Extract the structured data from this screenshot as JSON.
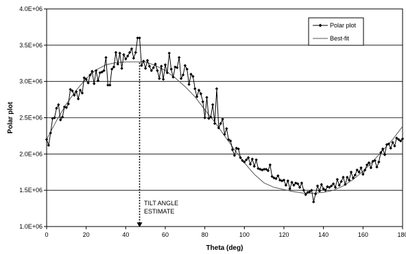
{
  "chart_data": {
    "type": "line",
    "title": "",
    "xlabel": "Theta (deg)",
    "ylabel": "Polar plot",
    "xlim": [
      0,
      180
    ],
    "ylim": [
      1000000,
      4000000
    ],
    "x_ticks": [
      0,
      20,
      40,
      60,
      80,
      100,
      120,
      140,
      160,
      180
    ],
    "x_tick_labels": [
      "0",
      "20",
      "40",
      "60",
      "80",
      "100",
      "120",
      "140",
      "160",
      "180"
    ],
    "y_ticks": [
      1000000,
      1500000,
      2000000,
      2500000,
      3000000,
      3500000,
      4000000
    ],
    "y_tick_labels": [
      "1.0E+06",
      "1.5E+06",
      "2.0E+06",
      "2.5E+06",
      "3.0E+06",
      "3.5E+06",
      "4.0E+06"
    ],
    "grid": "horizontal",
    "legend_position": "top-right",
    "colors": {
      "series": "#000000",
      "fit": "#555555",
      "grid": "#000000"
    },
    "series": [
      {
        "name": "Polar plot",
        "marker": "diamond",
        "x": [
          0,
          1,
          2,
          3,
          4,
          5,
          6,
          7,
          8,
          9,
          10,
          11,
          12,
          13,
          14,
          15,
          16,
          17,
          18,
          19,
          20,
          21,
          22,
          23,
          24,
          25,
          26,
          27,
          28,
          29,
          30,
          31,
          32,
          33,
          34,
          35,
          36,
          37,
          38,
          39,
          40,
          41,
          42,
          43,
          44,
          45,
          46,
          47,
          48,
          49,
          50,
          51,
          52,
          53,
          54,
          55,
          56,
          57,
          58,
          59,
          60,
          61,
          62,
          63,
          64,
          65,
          66,
          67,
          68,
          69,
          70,
          71,
          72,
          73,
          74,
          75,
          76,
          77,
          78,
          79,
          80,
          81,
          82,
          83,
          84,
          85,
          86,
          87,
          88,
          89,
          90,
          91,
          92,
          93,
          94,
          95,
          96,
          97,
          98,
          99,
          100,
          101,
          102,
          103,
          104,
          105,
          106,
          107,
          108,
          109,
          110,
          111,
          112,
          113,
          114,
          115,
          116,
          117,
          118,
          119,
          120,
          121,
          122,
          123,
          124,
          125,
          126,
          127,
          128,
          129,
          130,
          131,
          132,
          133,
          134,
          135,
          136,
          137,
          138,
          139,
          140,
          141,
          142,
          143,
          144,
          145,
          146,
          147,
          148,
          149,
          150,
          151,
          152,
          153,
          154,
          155,
          156,
          157,
          158,
          159,
          160,
          161,
          162,
          163,
          164,
          165,
          166,
          167,
          168,
          169,
          170,
          171,
          172,
          173,
          174,
          175,
          176,
          177,
          178,
          179,
          180
        ],
        "values": [
          2200000,
          2120000,
          2290000,
          2490000,
          2500000,
          2630000,
          2680000,
          2470000,
          2510000,
          2650000,
          2640000,
          2690000,
          2890000,
          2870000,
          2810000,
          2860000,
          2760000,
          2880000,
          2840000,
          3050000,
          3030000,
          2980000,
          3090000,
          3140000,
          2970000,
          3150000,
          3010000,
          3120000,
          3130000,
          3150000,
          3330000,
          2950000,
          2950000,
          3170000,
          3200000,
          3400000,
          3240000,
          3390000,
          3180000,
          3370000,
          3310000,
          3350000,
          3400000,
          3450000,
          3320000,
          3400000,
          3600000,
          3600000,
          3220000,
          3280000,
          3180000,
          3290000,
          3210000,
          3150000,
          3190000,
          3240000,
          3150000,
          3040000,
          3210000,
          3030000,
          3230000,
          3120000,
          3390000,
          3170000,
          3060000,
          3200000,
          3190000,
          3330000,
          3040000,
          3090000,
          3220000,
          3170000,
          2960000,
          3100000,
          3070000,
          2900000,
          2790000,
          2880000,
          2830000,
          2720000,
          2500000,
          2780000,
          2490000,
          2510000,
          2680000,
          2420000,
          2900000,
          2360000,
          2420000,
          2480000,
          2270000,
          2350000,
          2200000,
          2180000,
          2060000,
          1980000,
          2080000,
          2070000,
          1950000,
          1910000,
          1890000,
          1920000,
          1950000,
          1860000,
          1930000,
          1830000,
          1920000,
          1800000,
          1790000,
          1780000,
          1790000,
          1790000,
          1770000,
          1850000,
          1690000,
          1670000,
          1660000,
          1700000,
          1640000,
          1630000,
          1640000,
          1570000,
          1630000,
          1520000,
          1610000,
          1570000,
          1600000,
          1590000,
          1540000,
          1600000,
          1500000,
          1440000,
          1470000,
          1480000,
          1500000,
          1340000,
          1450000,
          1560000,
          1490000,
          1580000,
          1520000,
          1500000,
          1550000,
          1540000,
          1560000,
          1590000,
          1540000,
          1650000,
          1570000,
          1620000,
          1680000,
          1580000,
          1680000,
          1640000,
          1750000,
          1670000,
          1710000,
          1780000,
          1750000,
          1810000,
          1720000,
          1780000,
          1850000,
          1880000,
          1810000,
          1900000,
          1910000,
          1820000,
          1890000,
          2020000,
          2070000,
          1990000,
          2130000,
          2140000,
          2080000,
          2160000,
          2110000,
          2220000,
          2200000,
          2180000,
          2210000
        ]
      },
      {
        "name": "Best-fit",
        "x": [
          0,
          5,
          10,
          15,
          20,
          25,
          30,
          35,
          40,
          45,
          50,
          55,
          60,
          65,
          70,
          75,
          80,
          85,
          90,
          95,
          100,
          105,
          110,
          115,
          120,
          125,
          130,
          135,
          140,
          145,
          150,
          155,
          160,
          165,
          170,
          175,
          180
        ],
        "values": [
          2200000,
          2460000,
          2690000,
          2880000,
          3040000,
          3160000,
          3230000,
          3260000,
          3270000,
          3270000,
          3270000,
          3220000,
          3150000,
          3050000,
          2930000,
          2790000,
          2610000,
          2440000,
          2250000,
          2060000,
          1880000,
          1720000,
          1600000,
          1540000,
          1510000,
          1480000,
          1460000,
          1460000,
          1470000,
          1500000,
          1560000,
          1650000,
          1760000,
          1900000,
          2050000,
          2200000,
          2380000
        ]
      }
    ],
    "annotation": {
      "line1": "TILT ANGLE",
      "line2": "ESTIMATE",
      "arrow_x": 47,
      "arrow_from_y": 3260000,
      "arrow_to_y": 1000000
    }
  }
}
